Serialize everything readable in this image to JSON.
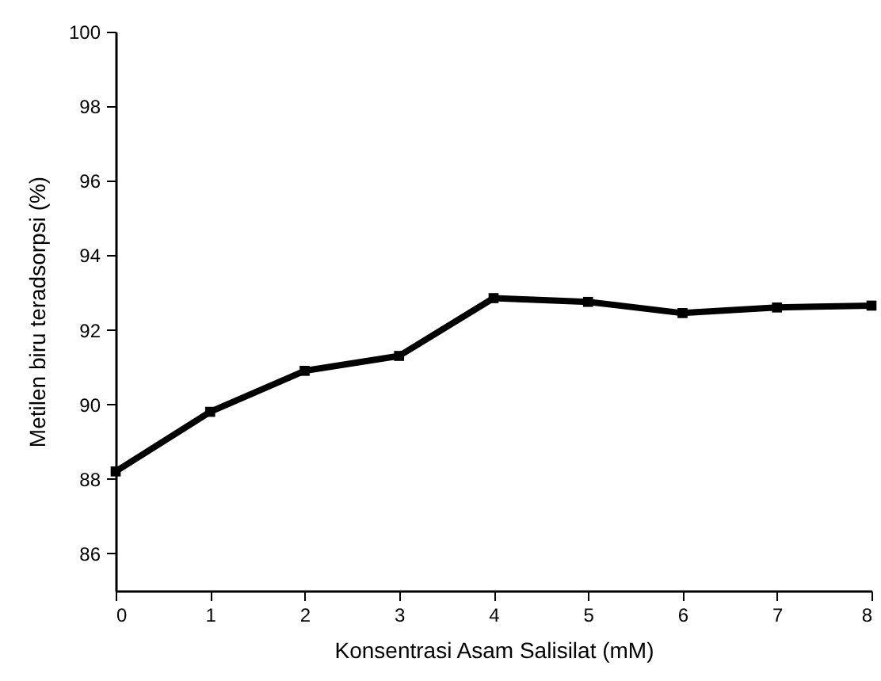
{
  "chart_data": {
    "type": "line",
    "xlabel": "Konsentrasi Asam Salisilat (mM)",
    "ylabel": "Metilen biru teradsorpsi (%)",
    "x": [
      0,
      1,
      2,
      3,
      4,
      5,
      6,
      7,
      8
    ],
    "series": [
      {
        "color": "#000000",
        "values": [
          88.2,
          89.8,
          90.9,
          91.3,
          92.85,
          92.75,
          92.45,
          92.6,
          92.65
        ]
      }
    ],
    "xlim": [
      0,
      8
    ],
    "xticks": [
      0,
      1,
      2,
      3,
      4,
      5,
      6,
      7,
      8
    ],
    "ylim": [
      85,
      100
    ],
    "yticks": [
      86,
      88,
      90,
      92,
      94,
      96,
      98,
      100
    ],
    "marker": "square",
    "line_style": "solid",
    "grid": false
  }
}
